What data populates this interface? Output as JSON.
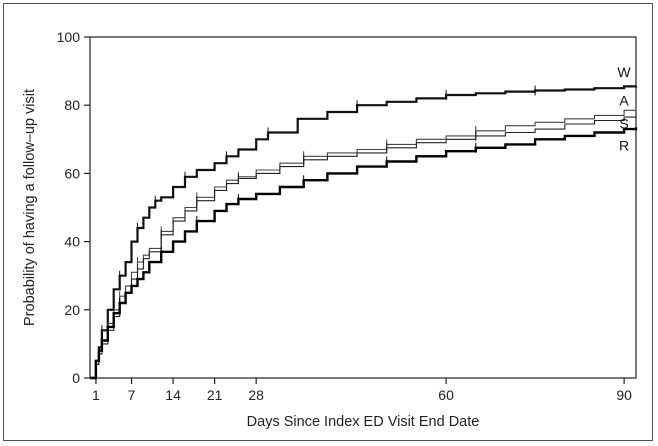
{
  "chart_data": {
    "type": "line",
    "step": true,
    "xlabel": "Days Since Index ED Visit End Date",
    "ylabel": "Probability of having a follow–up visit",
    "xlim": [
      0,
      92
    ],
    "ylim": [
      0,
      100
    ],
    "x_ticks": [
      1,
      7,
      14,
      21,
      28,
      60,
      90
    ],
    "y_ticks": [
      0,
      20,
      40,
      60,
      80,
      100
    ],
    "grid": false,
    "series": [
      {
        "name": "W",
        "color": "#111111",
        "points": [
          [
            0,
            0
          ],
          [
            1,
            5
          ],
          [
            1.5,
            9
          ],
          [
            2,
            14
          ],
          [
            3,
            20
          ],
          [
            4,
            26
          ],
          [
            5,
            30
          ],
          [
            6,
            34
          ],
          [
            7,
            40
          ],
          [
            8,
            44
          ],
          [
            9,
            47
          ],
          [
            10,
            50
          ],
          [
            11,
            52
          ],
          [
            12,
            53
          ],
          [
            14,
            56
          ],
          [
            16,
            59
          ],
          [
            18,
            61
          ],
          [
            21,
            63
          ],
          [
            23,
            65
          ],
          [
            25,
            67
          ],
          [
            28,
            70
          ],
          [
            30,
            72
          ],
          [
            35,
            76
          ],
          [
            40,
            78
          ],
          [
            45,
            80
          ],
          [
            50,
            81
          ],
          [
            55,
            82
          ],
          [
            60,
            83
          ],
          [
            65,
            83.5
          ],
          [
            70,
            84
          ],
          [
            75,
            84.3
          ],
          [
            80,
            84.6
          ],
          [
            85,
            85
          ],
          [
            90,
            85.5
          ],
          [
            92,
            85.7
          ]
        ]
      },
      {
        "name": "A",
        "color": "#444444",
        "points": [
          [
            0,
            0
          ],
          [
            1,
            4
          ],
          [
            1.5,
            8
          ],
          [
            2,
            11
          ],
          [
            3,
            16
          ],
          [
            4,
            20
          ],
          [
            5,
            24
          ],
          [
            6,
            27
          ],
          [
            7,
            31
          ],
          [
            8,
            34
          ],
          [
            9,
            36
          ],
          [
            10,
            38
          ],
          [
            12,
            43
          ],
          [
            14,
            47
          ],
          [
            16,
            50
          ],
          [
            18,
            53
          ],
          [
            21,
            56
          ],
          [
            23,
            58
          ],
          [
            25,
            59
          ],
          [
            28,
            61
          ],
          [
            32,
            63
          ],
          [
            36,
            65
          ],
          [
            40,
            66
          ],
          [
            45,
            67
          ],
          [
            50,
            68.5
          ],
          [
            55,
            70
          ],
          [
            60,
            71
          ],
          [
            65,
            72.5
          ],
          [
            70,
            74
          ],
          [
            75,
            75
          ],
          [
            80,
            76
          ],
          [
            85,
            77
          ],
          [
            90,
            78.5
          ],
          [
            92,
            79
          ]
        ]
      },
      {
        "name": "S",
        "color": "#222222",
        "points": [
          [
            0,
            0
          ],
          [
            1,
            4
          ],
          [
            1.5,
            7
          ],
          [
            2,
            10
          ],
          [
            3,
            14
          ],
          [
            4,
            18
          ],
          [
            5,
            22
          ],
          [
            6,
            25
          ],
          [
            7,
            29
          ],
          [
            8,
            32
          ],
          [
            9,
            35
          ],
          [
            10,
            37
          ],
          [
            12,
            42
          ],
          [
            14,
            46
          ],
          [
            16,
            49
          ],
          [
            18,
            52
          ],
          [
            21,
            55
          ],
          [
            23,
            57
          ],
          [
            25,
            58.5
          ],
          [
            28,
            60
          ],
          [
            32,
            62
          ],
          [
            36,
            64
          ],
          [
            40,
            65
          ],
          [
            45,
            66
          ],
          [
            50,
            67.5
          ],
          [
            55,
            69
          ],
          [
            60,
            70
          ],
          [
            65,
            71
          ],
          [
            70,
            72
          ],
          [
            75,
            73
          ],
          [
            80,
            74.5
          ],
          [
            85,
            75.5
          ],
          [
            90,
            76.5
          ],
          [
            92,
            77
          ]
        ]
      },
      {
        "name": "R",
        "color": "#000000",
        "points": [
          [
            0,
            0
          ],
          [
            1,
            5
          ],
          [
            1.5,
            8
          ],
          [
            2,
            11
          ],
          [
            3,
            15
          ],
          [
            4,
            19
          ],
          [
            5,
            22
          ],
          [
            6,
            25
          ],
          [
            7,
            27
          ],
          [
            8,
            29
          ],
          [
            9,
            31
          ],
          [
            10,
            34
          ],
          [
            12,
            37
          ],
          [
            14,
            40
          ],
          [
            16,
            43
          ],
          [
            18,
            46
          ],
          [
            21,
            49
          ],
          [
            23,
            51
          ],
          [
            25,
            52.5
          ],
          [
            28,
            54
          ],
          [
            32,
            56
          ],
          [
            36,
            58
          ],
          [
            40,
            60
          ],
          [
            45,
            62
          ],
          [
            50,
            63.5
          ],
          [
            55,
            65
          ],
          [
            60,
            66.5
          ],
          [
            65,
            67.5
          ],
          [
            70,
            68.5
          ],
          [
            75,
            70
          ],
          [
            80,
            71
          ],
          [
            85,
            72
          ],
          [
            90,
            73
          ],
          [
            92,
            73.5
          ]
        ]
      }
    ]
  }
}
